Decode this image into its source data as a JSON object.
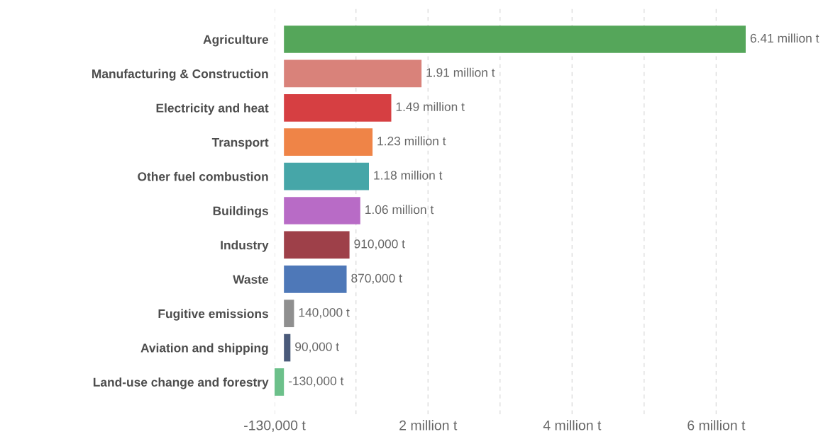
{
  "chart_data": {
    "type": "bar",
    "orientation": "horizontal",
    "categories": [
      "Agriculture",
      "Manufacturing & Construction",
      "Electricity and heat",
      "Transport",
      "Other fuel combustion",
      "Buildings",
      "Industry",
      "Waste",
      "Fugitive emissions",
      "Aviation and shipping",
      "Land-use change and forestry"
    ],
    "values": [
      6410000,
      1910000,
      1490000,
      1230000,
      1180000,
      1060000,
      910000,
      870000,
      140000,
      90000,
      -130000
    ],
    "colors": [
      "#55a65a",
      "#d9827a",
      "#d63f42",
      "#ef8447",
      "#46a6a8",
      "#b86bc6",
      "#9e4049",
      "#4e78b8",
      "#8f8f8f",
      "#4a5a7a",
      "#6cc08a"
    ],
    "value_labels": [
      "6.41 million t",
      "1.91 million t",
      "1.49 million t",
      "1.23 million t",
      "1.18 million t",
      "1.06 million t",
      "910,000 t",
      "870,000 t",
      "140,000 t",
      "90,000 t",
      "-130,000 t"
    ],
    "xlim": [
      -130000,
      6410000
    ],
    "xticks": [
      {
        "value": -130000,
        "label": "-130,000 t"
      },
      {
        "value": 1000000,
        "label": null
      },
      {
        "value": 2000000,
        "label": "2 million t"
      },
      {
        "value": 3000000,
        "label": null
      },
      {
        "value": 4000000,
        "label": "4 million t"
      },
      {
        "value": 5000000,
        "label": null
      },
      {
        "value": 6000000,
        "label": "6 million t"
      }
    ],
    "grid": "x"
  }
}
